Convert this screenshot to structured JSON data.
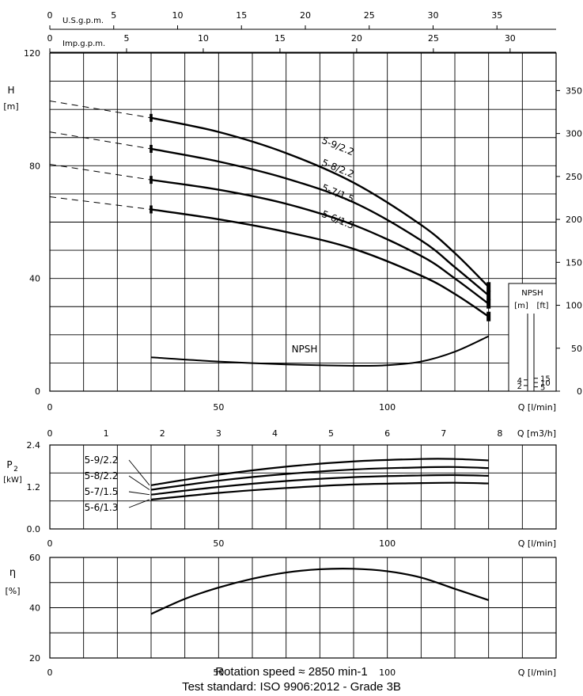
{
  "colors": {
    "ink": "#000000",
    "background": "#ffffff"
  },
  "footer": {
    "rotation": "Rotation speed ≈ 2850 min-1",
    "standard": "Test standard: ISO 9906:2012 - Grade 3B"
  },
  "chart_data": [
    {
      "type": "line",
      "panel": "head",
      "ylabel": "H",
      "yunit": "[m]",
      "xlabel": "Q [l/min]",
      "xlim": [
        0,
        150
      ],
      "ylim": [
        0,
        120
      ],
      "xticks": [
        "0",
        "50",
        "100"
      ],
      "yticks": [
        "0",
        "40",
        "80",
        "120"
      ],
      "grid": true,
      "top_axes": [
        {
          "label": "U.S.g.p.m.",
          "range": [
            0,
            39.63
          ],
          "ticks": [
            "0",
            "5",
            "10",
            "15",
            "20",
            "25",
            "30",
            "35"
          ]
        },
        {
          "label": "Imp.g.p.m.",
          "range": [
            0,
            33.0
          ],
          "ticks": [
            "0",
            "5",
            "10",
            "15",
            "20",
            "25",
            "30"
          ]
        }
      ],
      "right_axis": {
        "label": "",
        "range": [
          0,
          393.7
        ],
        "ticks": [
          "0",
          "50",
          "100",
          "150",
          "200",
          "250",
          "300",
          "350"
        ]
      },
      "series": [
        {
          "name": "5-9/2.2",
          "x": [
            30,
            50,
            70,
            90,
            110,
            120,
            130
          ],
          "y": [
            97,
            92,
            84.5,
            74,
            59,
            49,
            37
          ],
          "dashed_x": [
            0,
            30
          ],
          "dashed_y": [
            103,
            97
          ]
        },
        {
          "name": "5-8/2.2",
          "x": [
            30,
            50,
            70,
            90,
            110,
            120,
            130
          ],
          "y": [
            86,
            81.5,
            75.5,
            67,
            53.5,
            44,
            34
          ],
          "dashed_x": [
            0,
            30
          ],
          "dashed_y": [
            92,
            86
          ]
        },
        {
          "name": "5-7/1.5",
          "x": [
            30,
            50,
            70,
            90,
            110,
            120,
            130
          ],
          "y": [
            75,
            71.5,
            66.5,
            59,
            48,
            40,
            31
          ],
          "dashed_x": [
            0,
            30
          ],
          "dashed_y": [
            80.5,
            75
          ]
        },
        {
          "name": "5-6/1.3",
          "x": [
            30,
            50,
            70,
            90,
            110,
            120,
            130
          ],
          "y": [
            64.5,
            61,
            56.5,
            50.5,
            41,
            34.5,
            26.5
          ],
          "dashed_x": [
            0,
            30
          ],
          "dashed_y": [
            69,
            64.5
          ]
        }
      ],
      "npsh": {
        "name": "NPSH",
        "x": [
          30,
          50,
          70,
          90,
          100,
          110,
          120,
          130
        ],
        "y": [
          12,
          10.5,
          9.5,
          9,
          9.2,
          10.5,
          14,
          19.5
        ],
        "box_title": "NPSH",
        "box_units": [
          "[m]",
          "[ft]"
        ],
        "m_ticks": [
          "2",
          "4"
        ],
        "ft_ticks": [
          "5",
          "10",
          "15"
        ]
      }
    },
    {
      "type": "line",
      "panel": "power",
      "ylabel": "P",
      "ylabel_sub": "2",
      "yunit": "[kW]",
      "xlabel": "Q [l/min]",
      "xlim": [
        0,
        150
      ],
      "ylim": [
        0,
        2.4
      ],
      "xticks": [
        "0",
        "50",
        "100"
      ],
      "yticks": [
        "0.0",
        "1.2",
        "2.4"
      ],
      "grid": true,
      "top_axis": {
        "label": "Q [m3/h]",
        "range": [
          0,
          9
        ],
        "ticks": [
          "0",
          "1",
          "2",
          "3",
          "4",
          "5",
          "6",
          "7",
          "8"
        ]
      },
      "series": [
        {
          "name": "5-9/2.2",
          "x": [
            30,
            50,
            70,
            90,
            110,
            120,
            130
          ],
          "y": [
            1.25,
            1.55,
            1.78,
            1.93,
            2.0,
            2.0,
            1.96
          ]
        },
        {
          "name": "5-8/2.2",
          "x": [
            30,
            50,
            70,
            90,
            110,
            120,
            130
          ],
          "y": [
            1.12,
            1.38,
            1.57,
            1.7,
            1.76,
            1.77,
            1.74
          ]
        },
        {
          "name": "5-7/1.5",
          "x": [
            30,
            50,
            70,
            90,
            110,
            120,
            130
          ],
          "y": [
            0.98,
            1.2,
            1.37,
            1.48,
            1.53,
            1.54,
            1.52
          ]
        },
        {
          "name": "5-6/1.3",
          "x": [
            30,
            50,
            70,
            90,
            110,
            120,
            130
          ],
          "y": [
            0.84,
            1.03,
            1.17,
            1.27,
            1.31,
            1.32,
            1.3
          ]
        }
      ]
    },
    {
      "type": "line",
      "panel": "efficiency",
      "ylabel": "η",
      "yunit": "[%]",
      "xlabel": "Q [l/min]",
      "xlim": [
        0,
        150
      ],
      "ylim": [
        20,
        60
      ],
      "xticks": [
        "0",
        "50",
        "100"
      ],
      "yticks": [
        "20",
        "40",
        "60"
      ],
      "grid": true,
      "series": [
        {
          "name": "",
          "x": [
            30,
            40,
            50,
            60,
            70,
            80,
            90,
            100,
            110,
            120,
            130
          ],
          "y": [
            37.5,
            43.5,
            48,
            51.5,
            54,
            55.3,
            55.5,
            54.5,
            52,
            47.5,
            43
          ]
        }
      ]
    }
  ]
}
